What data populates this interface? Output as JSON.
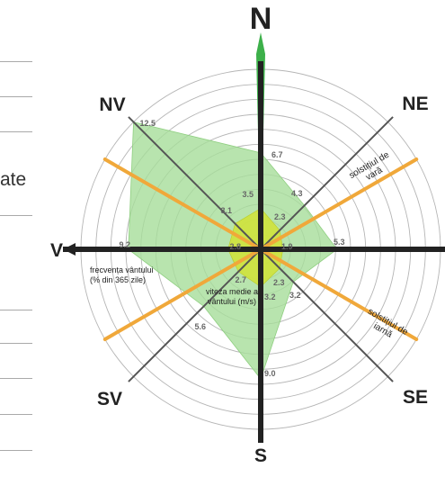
{
  "left_fragment": "ate",
  "directions": {
    "n": "N",
    "ne": "NE",
    "e": "",
    "se": "SE",
    "s": "S",
    "sv": "SV",
    "v": "V",
    "nv": "NV"
  },
  "ring_count": 12,
  "frequency": {
    "label_lines": [
      "frecvența vântului",
      "(% din 365 zile)"
    ],
    "values": [
      {
        "dir": "N",
        "value": "6.7"
      },
      {
        "dir": "NE",
        "value": "4.3"
      },
      {
        "dir": "E",
        "value": "5.3"
      },
      {
        "dir": "SE",
        "value": "3.2"
      },
      {
        "dir": "S",
        "value": "9.0"
      },
      {
        "dir": "SV",
        "value": "5.6"
      },
      {
        "dir": "V",
        "value": "9.2"
      },
      {
        "dir": "NV",
        "value": "12.5"
      }
    ]
  },
  "speed": {
    "label_lines": [
      "viteza medie a",
      "vântului (m/s)"
    ],
    "values": [
      {
        "dir": "N",
        "value": "3.5"
      },
      {
        "dir": "NE",
        "value": "2.3"
      },
      {
        "dir": "E",
        "value": "1.9"
      },
      {
        "dir": "SE",
        "value": "2.3"
      },
      {
        "dir": "S",
        "value": "3.2"
      },
      {
        "dir": "SV",
        "value": "2.7"
      },
      {
        "dir": "V",
        "value": "2.8"
      },
      {
        "dir": "NV",
        "value": "3.1"
      }
    ]
  },
  "solstices": {
    "summer_lines": [
      "solstițiul de",
      "vară"
    ],
    "winter_lines": [
      "solstițiul de",
      "iarnă"
    ]
  },
  "colors": {
    "frequency_fill": "#a6dd9a",
    "speed_fill": "#cfe23c",
    "north_spike": "#3db04a",
    "axis_main": "#222222",
    "axis_diag": "#555555",
    "solstice_line": "#f0a83a",
    "rings": "#b5b5b5",
    "value_labels": "#666666"
  }
}
